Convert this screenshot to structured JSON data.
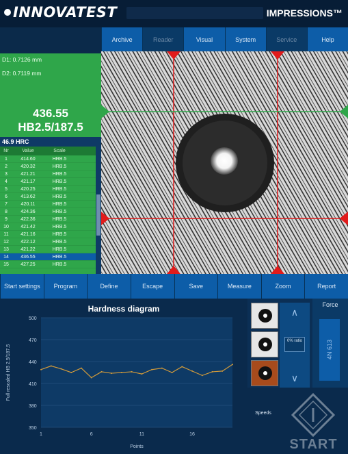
{
  "header": {
    "logo": "INNOVATEST",
    "title": "",
    "brand_right": "IMPRESSIONS™",
    "subtitle": ""
  },
  "tabs": [
    {
      "label": "Archive",
      "dim": false
    },
    {
      "label": "Reader",
      "dim": true
    },
    {
      "label": "Visual",
      "dim": false
    },
    {
      "label": "System",
      "dim": false
    },
    {
      "label": "Service",
      "dim": true
    },
    {
      "label": "Help",
      "dim": false
    }
  ],
  "measurement": {
    "d1": "D1: 0.7126 mm",
    "d2": "D2: 0.7119 mm",
    "value": "436.55",
    "scale": "HB2.5/187.5"
  },
  "hrc": "46.9 HRC",
  "table": {
    "headers": [
      "Nr",
      "Value",
      "Scale"
    ],
    "rows": [
      {
        "n": "1",
        "v": "414.60",
        "s": "HRB.5"
      },
      {
        "n": "2",
        "v": "420.32",
        "s": "HRB.5"
      },
      {
        "n": "3",
        "v": "421.21",
        "s": "HRB.5"
      },
      {
        "n": "4",
        "v": "421.17",
        "s": "HRB.5"
      },
      {
        "n": "5",
        "v": "420.25",
        "s": "HRB.5"
      },
      {
        "n": "6",
        "v": "413.62",
        "s": "HRB.5"
      },
      {
        "n": "7",
        "v": "420.11",
        "s": "HRB.5"
      },
      {
        "n": "8",
        "v": "424.36",
        "s": "HRB.5"
      },
      {
        "n": "9",
        "v": "422.36",
        "s": "HRB.5"
      },
      {
        "n": "10",
        "v": "421.42",
        "s": "HRB.5"
      },
      {
        "n": "11",
        "v": "421.16",
        "s": "HRB.5"
      },
      {
        "n": "12",
        "v": "422.12",
        "s": "HRB.5"
      },
      {
        "n": "13",
        "v": "421.22",
        "s": "HRB.5"
      },
      {
        "n": "14",
        "v": "436.55",
        "s": "HRB.5"
      },
      {
        "n": "15",
        "v": "427.25",
        "s": "HRB.5"
      }
    ],
    "selected_row": 13
  },
  "buttons": [
    "Start settings",
    "Program",
    "Define",
    "Escape",
    "Save",
    "Measure",
    "Zoom",
    "Report"
  ],
  "diagram": {
    "title": "Hardness diagram",
    "ylabel": "Full rescaled HB 2.5/187.5",
    "xlabel": "Points",
    "yticks": [
      "500",
      "470",
      "440",
      "410",
      "380",
      "350"
    ],
    "xticks": [
      "1",
      "6",
      "11",
      "16"
    ]
  },
  "chart_data": {
    "type": "line",
    "title": "Hardness diagram",
    "xlabel": "Points",
    "ylabel": "Full rescaled HB 2.5/187.5",
    "xlim": [
      1,
      20
    ],
    "ylim": [
      350,
      500
    ],
    "x": [
      1,
      2,
      3,
      4,
      5,
      6,
      7,
      8,
      9,
      10,
      11,
      12,
      13,
      14,
      15,
      16,
      17,
      18,
      19,
      20
    ],
    "series": [
      {
        "values": [
          429,
          434,
          430,
          425,
          431,
          418,
          426,
          424,
          425,
          426,
          423,
          429,
          431,
          425,
          433,
          427,
          421,
          426,
          427,
          436
        ]
      }
    ],
    "color": "#d29a3a",
    "grid": true
  },
  "right_panel": {
    "nav_label": "0% ratio",
    "force_title": "Force",
    "force_value": "4N 613",
    "speed_label": "Speeds",
    "start_label": "START"
  },
  "colors": {
    "accent": "#0d5da8",
    "measure_green": "#2fa64a",
    "crosshair": "#e11b1b"
  }
}
